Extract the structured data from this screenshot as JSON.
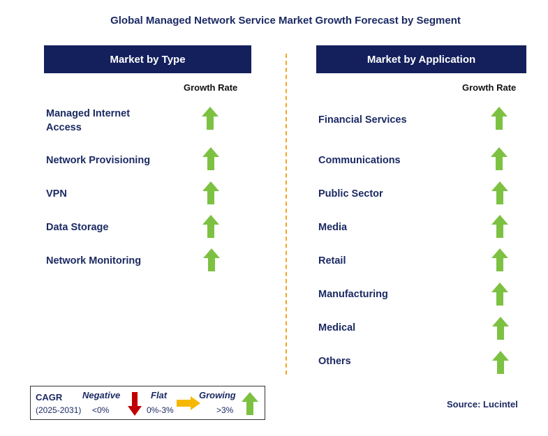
{
  "title": "Global Managed Network Service Market Growth Forecast by Segment",
  "left_panel": {
    "header": "Market by Type",
    "growth_rate_label": "Growth Rate",
    "items": [
      {
        "label": "Managed Internet Access",
        "trend": "growing"
      },
      {
        "label": "Network Provisioning",
        "trend": "growing"
      },
      {
        "label": "VPN",
        "trend": "growing"
      },
      {
        "label": "Data Storage",
        "trend": "growing"
      },
      {
        "label": "Network Monitoring",
        "trend": "growing"
      }
    ]
  },
  "right_panel": {
    "header": "Market by Application",
    "growth_rate_label": "Growth Rate",
    "items": [
      {
        "label": "Financial Services",
        "trend": "growing"
      },
      {
        "label": "Communications",
        "trend": "growing"
      },
      {
        "label": "Public Sector",
        "trend": "growing"
      },
      {
        "label": "Media",
        "trend": "growing"
      },
      {
        "label": "Retail",
        "trend": "growing"
      },
      {
        "label": "Manufacturing",
        "trend": "growing"
      },
      {
        "label": "Medical",
        "trend": "growing"
      },
      {
        "label": "Others",
        "trend": "growing"
      }
    ]
  },
  "legend": {
    "cagr_label": "CAGR",
    "period": "(2025-2031)",
    "negative_label": "Negative",
    "negative_range": "<0%",
    "flat_label": "Flat",
    "flat_range": "0%-3%",
    "growing_label": "Growing",
    "growing_range": ">3%"
  },
  "source": "Source: Lucintel",
  "colors": {
    "header_bg": "#14205c",
    "arrow_green": "#7dc142",
    "arrow_red": "#c00000",
    "arrow_yellow": "#f5b800",
    "divider": "#f5a623"
  }
}
